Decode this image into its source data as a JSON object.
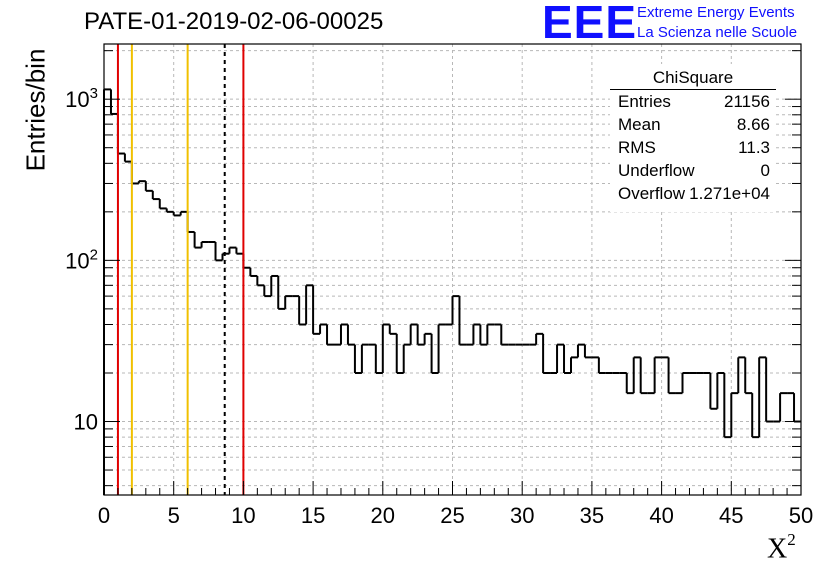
{
  "header": {
    "title": "PATE-01-2019-02-06-00025"
  },
  "logo": {
    "mark": "EEE",
    "line1": "Extreme Energy Events",
    "line2": "La Scienza nelle Scuole"
  },
  "axes": {
    "ylabel": "Entries/bin",
    "xlabel": "X",
    "xlabel_sup": "2"
  },
  "stats": {
    "title": "ChiSquare",
    "rows": [
      {
        "label": "Entries",
        "value": "21156"
      },
      {
        "label": "Mean",
        "value": "8.66"
      },
      {
        "label": "RMS",
        "value": "11.3"
      },
      {
        "label": "Underflow",
        "value": "0"
      },
      {
        "label": "Overflow",
        "value": "1.271e+04"
      }
    ]
  },
  "chart_data": {
    "type": "histogram",
    "title": "PATE-01-2019-02-06-00025",
    "xlabel": "X²",
    "ylabel": "Entries/bin",
    "xlim": [
      0,
      50
    ],
    "ylim": [
      3.5,
      2200
    ],
    "yscale": "log",
    "grid": true,
    "bin_width": 0.5,
    "x_ticks": [
      0,
      5,
      10,
      15,
      20,
      25,
      30,
      35,
      40,
      45,
      50
    ],
    "y_ticks": [
      {
        "value": 10,
        "label": "10"
      },
      {
        "value": 100,
        "label": "10²"
      },
      {
        "value": 1000,
        "label": "10³"
      }
    ],
    "counts": [
      1150,
      810,
      460,
      410,
      300,
      310,
      270,
      240,
      210,
      200,
      190,
      200,
      150,
      120,
      130,
      130,
      100,
      110,
      120,
      110,
      90,
      80,
      70,
      60,
      80,
      50,
      60,
      60,
      40,
      70,
      35,
      40,
      30,
      30,
      40,
      30,
      20,
      30,
      30,
      20,
      40,
      35,
      20,
      30,
      40,
      30,
      35,
      20,
      40,
      40,
      60,
      30,
      30,
      40,
      30,
      40,
      40,
      30,
      30,
      30,
      30,
      30,
      35,
      20,
      20,
      30,
      20,
      25,
      30,
      25,
      25,
      20,
      20,
      20,
      20,
      15,
      25,
      15,
      15,
      25,
      25,
      15,
      15,
      20,
      20,
      20,
      20,
      12,
      20,
      8,
      15,
      25,
      15,
      8,
      25,
      10,
      10,
      15,
      15,
      10
    ],
    "vertical_lines": [
      {
        "x": 1,
        "color": "#e00000",
        "style": "solid"
      },
      {
        "x": 2,
        "color": "#f0c000",
        "style": "solid"
      },
      {
        "x": 6,
        "color": "#f0c000",
        "style": "solid"
      },
      {
        "x": 8.66,
        "color": "#000000",
        "style": "dashed"
      },
      {
        "x": 10,
        "color": "#e00000",
        "style": "solid"
      }
    ]
  }
}
